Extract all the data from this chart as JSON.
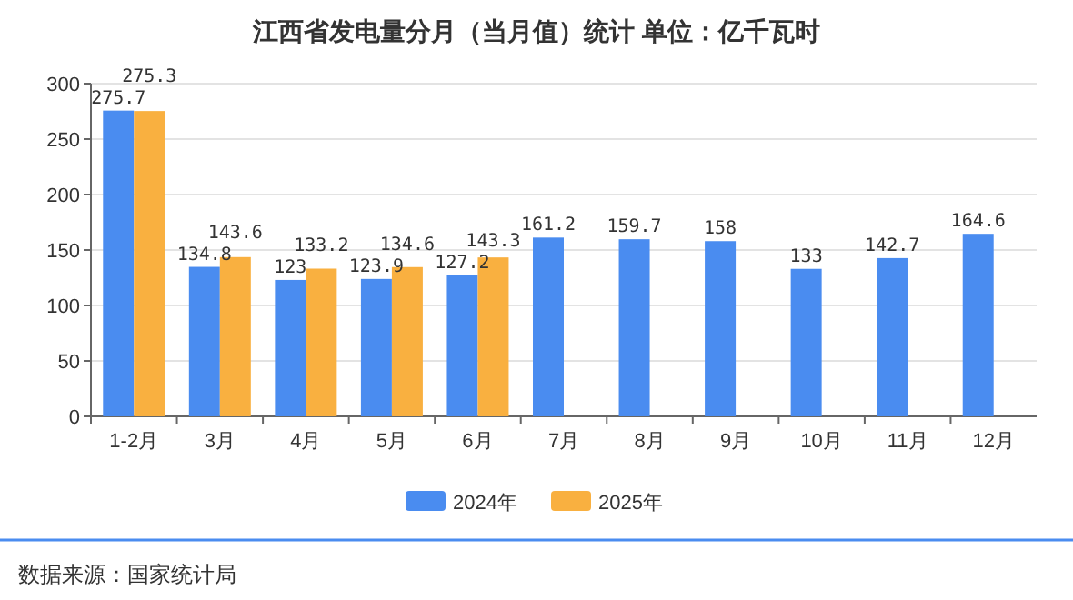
{
  "chart_data": {
    "type": "bar",
    "title": "江西省发电量分月（当月值）统计  单位：亿千瓦时",
    "categories": [
      "1-2月",
      "3月",
      "4月",
      "5月",
      "6月",
      "7月",
      "8月",
      "9月",
      "10月",
      "11月",
      "12月"
    ],
    "series": [
      {
        "name": "2024年",
        "color": "#4a8cf0",
        "values": [
          275.7,
          134.8,
          123,
          123.9,
          127.2,
          161.2,
          159.7,
          158,
          133,
          142.7,
          164.6
        ]
      },
      {
        "name": "2025年",
        "color": "#f9b040",
        "values": [
          275.3,
          143.6,
          133.2,
          134.6,
          143.3,
          null,
          null,
          null,
          null,
          null,
          null
        ]
      }
    ],
    "ylim": [
      0,
      300
    ],
    "yticks": [
      0,
      50,
      100,
      150,
      200,
      250,
      300
    ],
    "grid": "y",
    "legend": "bottom",
    "data_labels": true,
    "annotations": [
      "数据来源：国家统计局"
    ]
  }
}
